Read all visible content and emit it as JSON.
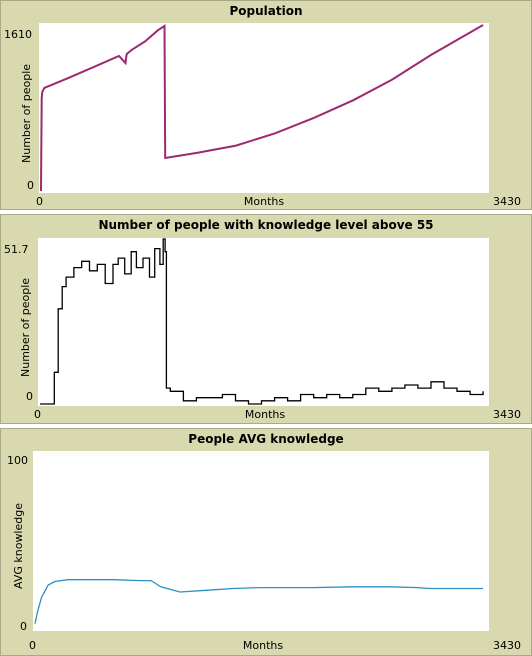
{
  "chart_data": [
    {
      "type": "line",
      "title": "Population",
      "xlabel": "Months",
      "ylabel": "Number of people",
      "xlim": [
        0,
        3430
      ],
      "ylim": [
        0,
        1610
      ],
      "x_ticks": [
        "0",
        "3430"
      ],
      "y_ticks": [
        "0",
        "1610"
      ],
      "color": "#9c2a6e",
      "x": [
        0,
        5,
        10,
        25,
        200,
        400,
        600,
        650,
        655,
        660,
        700,
        800,
        900,
        950,
        955,
        1200,
        1500,
        1800,
        2100,
        2400,
        2700,
        3000,
        3400
      ],
      "y": [
        0,
        900,
        960,
        1000,
        1090,
        1200,
        1310,
        1240,
        1300,
        1330,
        1370,
        1450,
        1560,
        1600,
        320,
        370,
        440,
        560,
        710,
        880,
        1080,
        1320,
        1610
      ]
    },
    {
      "type": "line",
      "title": "Number of people with knowledge level above 55",
      "xlabel": "Months",
      "ylabel": "Number of people",
      "xlim": [
        0,
        3430
      ],
      "ylim": [
        0,
        51.7
      ],
      "x_ticks": [
        "0",
        "3430"
      ],
      "y_ticks": [
        "0",
        "51.7"
      ],
      "color": "#000000",
      "x": [
        0,
        80,
        110,
        140,
        170,
        200,
        260,
        320,
        380,
        440,
        500,
        560,
        600,
        650,
        700,
        740,
        790,
        840,
        880,
        920,
        945,
        960,
        970,
        1000,
        1100,
        1200,
        1300,
        1400,
        1500,
        1600,
        1700,
        1800,
        1900,
        2000,
        2100,
        2200,
        2300,
        2400,
        2500,
        2600,
        2700,
        2800,
        2900,
        3000,
        3100,
        3200,
        3300,
        3400
      ],
      "y": [
        0,
        0,
        10,
        30,
        37,
        40,
        43,
        45,
        42,
        44,
        38,
        44,
        46,
        41,
        48,
        43,
        46,
        40,
        49,
        44,
        52,
        48,
        5,
        4,
        1,
        2,
        2,
        3,
        1,
        0,
        1,
        2,
        1,
        3,
        2,
        3,
        2,
        3,
        5,
        4,
        5,
        6,
        5,
        7,
        5,
        4,
        3,
        4
      ]
    },
    {
      "type": "line",
      "title": "People AVG knowledge",
      "xlabel": "Months",
      "ylabel": "AVG knowledge",
      "xlim": [
        0,
        3430
      ],
      "ylim": [
        0,
        100
      ],
      "x_ticks": [
        "0",
        "3430"
      ],
      "y_ticks": [
        "0",
        "100"
      ],
      "color": "#2d8fc4",
      "x": [
        0,
        20,
        50,
        100,
        150,
        250,
        400,
        600,
        800,
        880,
        955,
        1100,
        1300,
        1500,
        1700,
        1900,
        2100,
        2400,
        2700,
        2900,
        3000,
        3400
      ],
      "y": [
        3,
        10,
        18,
        25,
        27,
        28,
        28,
        28,
        27.5,
        27.5,
        24,
        21,
        22,
        23,
        23.5,
        23.5,
        23.5,
        24,
        24,
        23.5,
        23,
        23
      ]
    }
  ]
}
